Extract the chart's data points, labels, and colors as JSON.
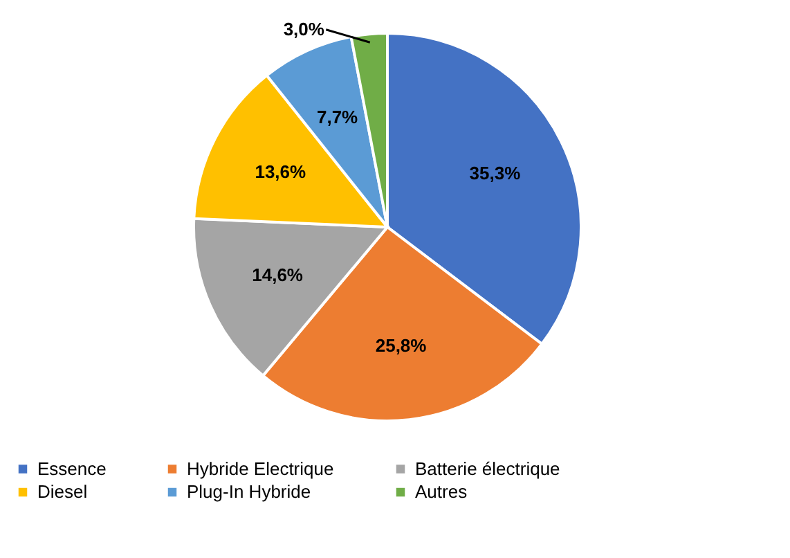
{
  "chart_data": {
    "type": "pie",
    "categories": [
      "Essence",
      "Hybride Electrique",
      "Batterie électrique",
      "Diesel",
      "Plug-In Hybride",
      "Autres"
    ],
    "values": [
      35.3,
      25.8,
      14.6,
      13.6,
      7.7,
      3.0
    ],
    "value_labels": [
      "35,3%",
      "25,8%",
      "14,6%",
      "13,6%",
      "7,7%",
      "3,0%"
    ],
    "colors": [
      "#4472c4",
      "#ed7d31",
      "#a5a5a5",
      "#ffc000",
      "#5b9bd5",
      "#70ad47"
    ],
    "legend": "bottom"
  }
}
